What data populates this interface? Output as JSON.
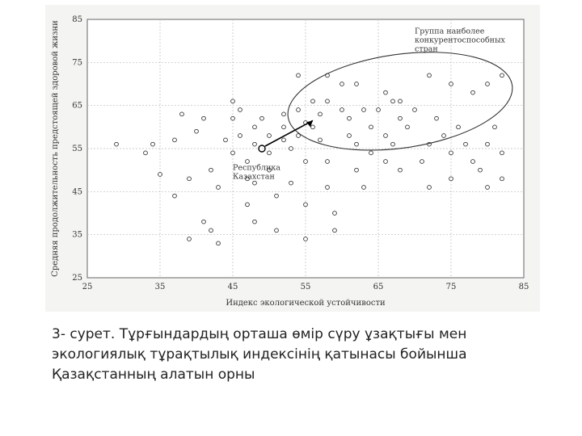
{
  "chart_data": {
    "type": "scatter",
    "title": "",
    "xlabel": "Индекс экологической устойчивости",
    "ylabel": "Средняя продолжительность предстоящей здоровой жизни",
    "xlim": [
      25,
      85
    ],
    "ylim": [
      25,
      85
    ],
    "xticks": [
      "25",
      "35",
      "45",
      "55",
      "65",
      "75",
      "85"
    ],
    "yticks": [
      "25",
      "35",
      "45",
      "55",
      "65",
      "75",
      "85"
    ],
    "grid": true,
    "points": [
      [
        29,
        56
      ],
      [
        33,
        54
      ],
      [
        34,
        56
      ],
      [
        35,
        49
      ],
      [
        37,
        57
      ],
      [
        37,
        44
      ],
      [
        38,
        63
      ],
      [
        39,
        48
      ],
      [
        39,
        34
      ],
      [
        40,
        59
      ],
      [
        41,
        62
      ],
      [
        41,
        38
      ],
      [
        42,
        50
      ],
      [
        42,
        36
      ],
      [
        43,
        46
      ],
      [
        43,
        33
      ],
      [
        44,
        57
      ],
      [
        45,
        66
      ],
      [
        45,
        62
      ],
      [
        45,
        54
      ],
      [
        46,
        64
      ],
      [
        46,
        58
      ],
      [
        47,
        52
      ],
      [
        47,
        48
      ],
      [
        47,
        42
      ],
      [
        48,
        60
      ],
      [
        48,
        56
      ],
      [
        48,
        47
      ],
      [
        48,
        38
      ],
      [
        49,
        62
      ],
      [
        50,
        58
      ],
      [
        50,
        54
      ],
      [
        50,
        50
      ],
      [
        51,
        44
      ],
      [
        51,
        36
      ],
      [
        52,
        63
      ],
      [
        52,
        60
      ],
      [
        52,
        57
      ],
      [
        53,
        55
      ],
      [
        53,
        47
      ],
      [
        54,
        64
      ],
      [
        54,
        58
      ],
      [
        55,
        61
      ],
      [
        55,
        52
      ],
      [
        55,
        42
      ],
      [
        55,
        34
      ],
      [
        56,
        66
      ],
      [
        56,
        60
      ],
      [
        57,
        63
      ],
      [
        57,
        57
      ],
      [
        58,
        66
      ],
      [
        58,
        52
      ],
      [
        58,
        46
      ],
      [
        59,
        40
      ],
      [
        59,
        36
      ],
      [
        60,
        70
      ],
      [
        60,
        64
      ],
      [
        61,
        62
      ],
      [
        61,
        58
      ],
      [
        62,
        56
      ],
      [
        62,
        50
      ],
      [
        63,
        64
      ],
      [
        63,
        46
      ],
      [
        64,
        60
      ],
      [
        64,
        54
      ],
      [
        65,
        64
      ],
      [
        66,
        58
      ],
      [
        66,
        52
      ],
      [
        67,
        66
      ],
      [
        67,
        56
      ],
      [
        68,
        62
      ],
      [
        68,
        50
      ],
      [
        69,
        60
      ],
      [
        70,
        64
      ],
      [
        71,
        52
      ],
      [
        72,
        56
      ],
      [
        72,
        46
      ],
      [
        73,
        62
      ],
      [
        74,
        58
      ],
      [
        75,
        54
      ],
      [
        75,
        48
      ],
      [
        76,
        60
      ],
      [
        77,
        56
      ],
      [
        78,
        52
      ],
      [
        79,
        50
      ],
      [
        80,
        56
      ],
      [
        80,
        46
      ],
      [
        81,
        60
      ],
      [
        82,
        54
      ],
      [
        82,
        48
      ],
      [
        54,
        72
      ],
      [
        58,
        72
      ],
      [
        62,
        70
      ],
      [
        66,
        68
      ],
      [
        68,
        66
      ],
      [
        72,
        72
      ],
      [
        75,
        70
      ],
      [
        78,
        68
      ],
      [
        82,
        72
      ],
      [
        80,
        70
      ]
    ],
    "annotations": [
      {
        "text_lines": [
          "Группа наиболее",
          "конкурентоспособных",
          "стран"
        ]
      },
      {
        "text_lines": [
          "Республика",
          "Казахстан"
        ]
      }
    ]
  },
  "caption": "3- сурет. Тұрғындардың орташа өмір сүру ұзақтығы мен\nэкологиялық тұрақтылық индексінің қатынасы бойынша\nҚазақстанның алатын орны"
}
